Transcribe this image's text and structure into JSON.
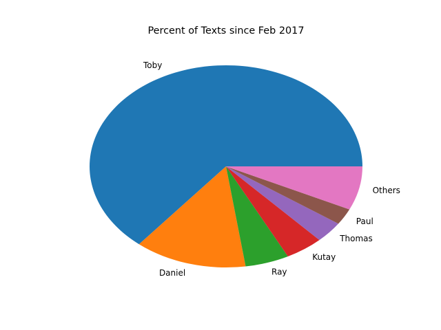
{
  "chart_data": {
    "type": "pie",
    "title": "Percent of Texts since Feb 2017",
    "slices": [
      {
        "label": "Toby",
        "value": 64.0,
        "color": "#1f77b4"
      },
      {
        "label": "Daniel",
        "value": 13.3,
        "color": "#ff7f0e"
      },
      {
        "label": "Ray",
        "value": 5.2,
        "color": "#2ca02c"
      },
      {
        "label": "Kutay",
        "value": 4.5,
        "color": "#d62728"
      },
      {
        "label": "Thomas",
        "value": 3.4,
        "color": "#9467bd"
      },
      {
        "label": "Paul",
        "value": 2.6,
        "color": "#8c564b"
      },
      {
        "label": "Others",
        "value": 7.0,
        "color": "#e377c2"
      }
    ],
    "start_angle_deg": 0,
    "direction": "counterclockwise",
    "legend": "none"
  }
}
